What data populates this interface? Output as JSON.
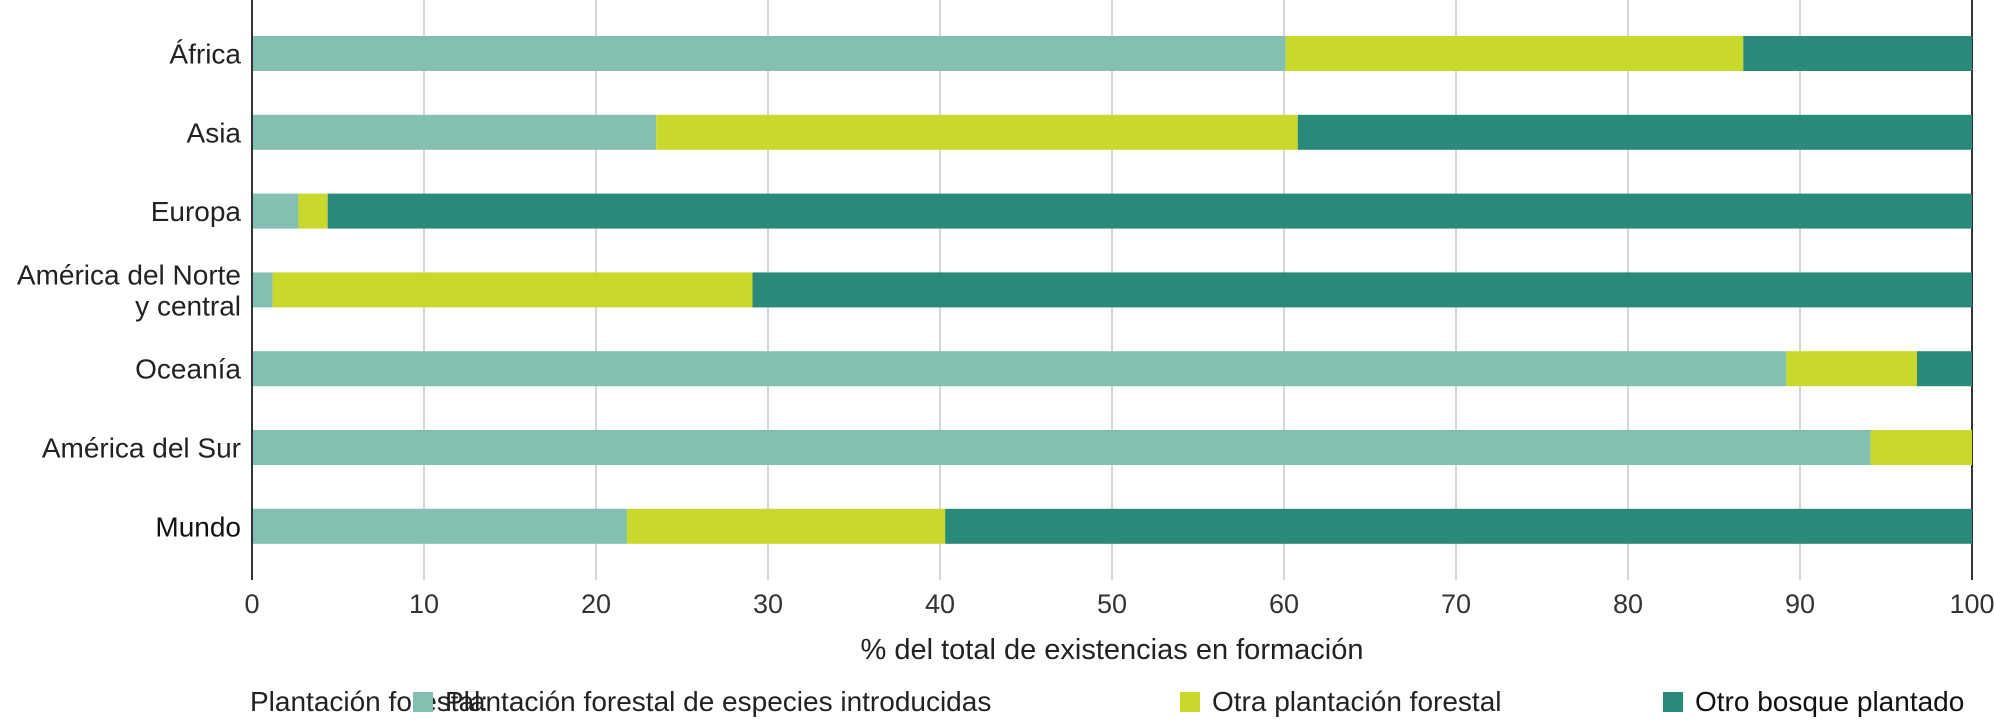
{
  "chart_data": {
    "type": "bar",
    "orientation": "horizontal",
    "stacked": true,
    "title": "",
    "xlabel": "% del total de existencias en formación",
    "ylabel": "",
    "xlim": [
      0,
      100
    ],
    "xticks": [
      0,
      10,
      20,
      30,
      40,
      50,
      60,
      70,
      80,
      90,
      100
    ],
    "xtick_labels": [
      "0",
      "10",
      "20",
      "30",
      "40",
      "50",
      "60",
      "70",
      "80",
      "90",
      "100"
    ],
    "grid": "vertical",
    "categories": [
      "África",
      "Asia",
      "Europa",
      "América del Norte y central",
      "Oceanía",
      "América del Sur",
      "Mundo"
    ],
    "category_lines": [
      [
        "África"
      ],
      [
        "Asia"
      ],
      [
        "Europa"
      ],
      [
        "América del Norte",
        "y central"
      ],
      [
        "Oceanía"
      ],
      [
        "América del Sur"
      ],
      [
        "Mundo"
      ]
    ],
    "emphasized_category": "Mundo",
    "series": [
      {
        "name": "Plantación forestal de especies introducidas",
        "color": "#84c0b2",
        "values": [
          60.1,
          23.5,
          2.7,
          1.2,
          89.2,
          94.1,
          21.8
        ]
      },
      {
        "name": "Otra plantación forestal",
        "color": "#c8d92b",
        "values": [
          26.6,
          37.3,
          1.7,
          27.9,
          7.6,
          5.9,
          18.5
        ]
      },
      {
        "name": "Otro bosque plantado",
        "color": "#2a8a7a",
        "values": [
          13.3,
          39.2,
          95.6,
          70.9,
          3.2,
          0.0,
          59.7
        ]
      }
    ],
    "legend": {
      "title": "Plantación forestal:",
      "placement": "bottom"
    }
  }
}
